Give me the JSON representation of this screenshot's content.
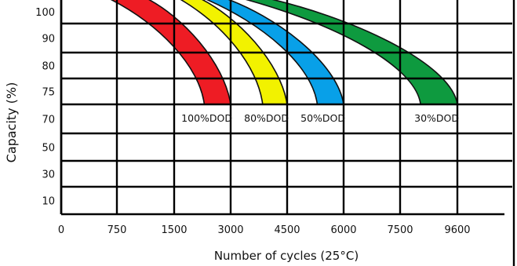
{
  "chart_data": {
    "type": "area",
    "xlabel": "Number of cycles (25°C)",
    "ylabel": "Capacity (%)",
    "x_ticks": [
      "0",
      "750",
      "1500",
      "3000",
      "4500",
      "6000",
      "7500",
      "9600"
    ],
    "y_ticks": [
      "100",
      "90",
      "80",
      "75",
      "70",
      "50",
      "30",
      "10"
    ],
    "grid": true,
    "series": [
      {
        "name": "100%DOD",
        "color": "#ee1c24",
        "start_x_inner": "600",
        "start_x_outer": "1100",
        "end_x_inner": "2300",
        "end_x_outer": "3000",
        "end_y": 70
      },
      {
        "name": "80%DOD",
        "color": "#f2f200",
        "start_x_inner": "1550",
        "start_x_outer": "2100",
        "end_x_inner": "3850",
        "end_x_outer": "4500",
        "end_y": 70
      },
      {
        "name": "50%DOD",
        "color": "#08a0e8",
        "start_x_inner": "2200",
        "start_x_outer": "2750",
        "end_x_inner": "5300",
        "end_x_outer": "6000",
        "end_y": 70
      },
      {
        "name": "30%DOD",
        "color": "#0e9a3f",
        "start_x_inner": "3150",
        "start_x_outer": "3800",
        "end_x_inner": "8250",
        "end_x_outer": "9600",
        "end_y": 70
      }
    ]
  }
}
